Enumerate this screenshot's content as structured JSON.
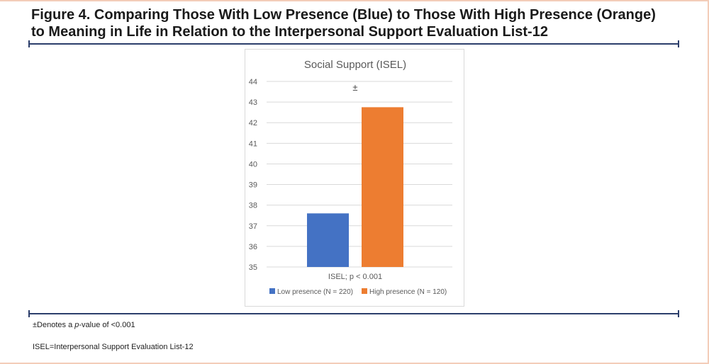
{
  "figure": {
    "title": "Figure 4. Comparing Those With Low Presence (Blue) to Those With High Presence (Orange)\nto Meaning in Life in Relation to the Interpersonal Support Evaluation List-12"
  },
  "footnotes": {
    "note1_prefix": "±Denotes a ",
    "note1_italic": "p",
    "note1_suffix": "-value of <0.001",
    "note2": "ISEL=Interpersonal Support Evaluation List-12"
  },
  "chart_data": {
    "type": "bar",
    "title": "Social  Support (ISEL)",
    "categories": [
      "ISEL; p < 0.001"
    ],
    "series": [
      {
        "name": "Low presence (N = 220)",
        "values": [
          37.6
        ],
        "color": "#4472c4"
      },
      {
        "name": "High presence (N = 120)",
        "values": [
          42.75
        ],
        "color": "#ed7d31"
      }
    ],
    "ylim": [
      35,
      44
    ],
    "yticks": [
      35,
      36,
      37,
      38,
      39,
      40,
      41,
      42,
      43,
      44
    ],
    "grid": true,
    "annotation": "±",
    "legend_position": "bottom"
  }
}
